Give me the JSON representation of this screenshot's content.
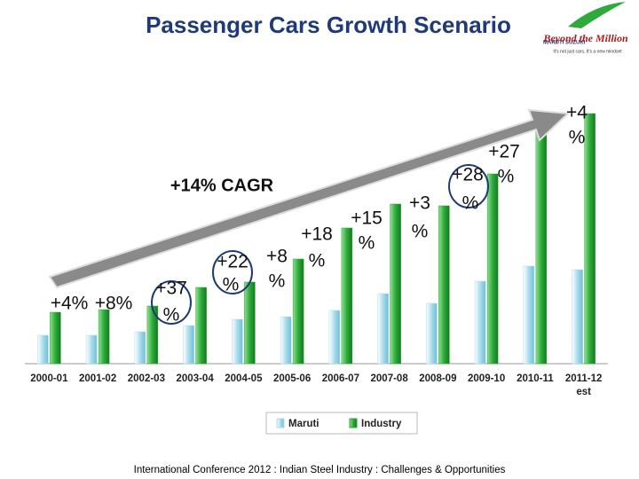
{
  "chart_data": {
    "type": "bar",
    "title": "Passenger Cars Growth Scenario",
    "categories": [
      "2000-01",
      "2001-02",
      "2002-03",
      "2003-04",
      "2004-05",
      "2005-06",
      "2006-07",
      "2007-08",
      "2008-09",
      "2009-10",
      "2010-11",
      "2011-12 est"
    ],
    "series": [
      {
        "name": "Maruti",
        "color": "#a9dcec",
        "values": [
          32,
          32,
          36,
          43,
          50,
          53,
          60,
          79,
          68,
          93,
          110,
          106
        ]
      },
      {
        "name": "Industry",
        "color": "#2eaa3a",
        "values": [
          58,
          61,
          65,
          86,
          92,
          118,
          153,
          180,
          178,
          214,
          268,
          282
        ]
      }
    ],
    "ylim": [
      0,
      310
    ],
    "trend_label": "+14% CAGR",
    "annotations": [
      [
        "+4%"
      ],
      [
        "+8%"
      ],
      [
        "+37",
        "%"
      ],
      [
        "+22",
        "%"
      ],
      [
        "+8",
        "%"
      ],
      [
        "+18",
        "%"
      ],
      [
        "+15",
        "%"
      ],
      [
        "+3",
        "%"
      ],
      [
        "+28",
        "%"
      ],
      [
        "+27",
        "%"
      ],
      [
        "+4",
        "%"
      ]
    ],
    "logo": {
      "brand": "MARUTI SUZUKI",
      "title": "Beyond the Million",
      "tagline": "It's not just cars. It's a new mindset"
    },
    "footer": "International Conference 2012 : Indian Steel Industry : Challenges & Opportunities"
  }
}
